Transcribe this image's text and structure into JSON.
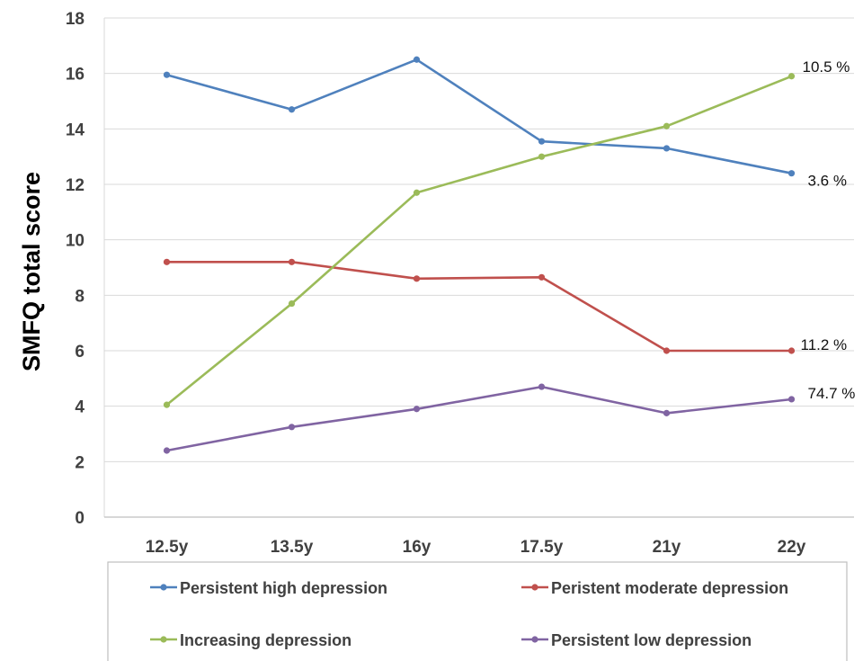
{
  "chart_data": {
    "type": "line",
    "title": "",
    "xlabel": "",
    "ylabel": "SMFQ total score",
    "categories": [
      "12.5y",
      "13.5y",
      "16y",
      "17.5y",
      "21y",
      "22y"
    ],
    "ylim": [
      0,
      18
    ],
    "yticks": [
      0,
      2,
      4,
      6,
      8,
      10,
      12,
      14,
      16,
      18
    ],
    "grid": "horizontal",
    "legend_position": "bottom",
    "series": [
      {
        "name": "Persistent high depression",
        "color": "#4f81bd",
        "values": [
          15.95,
          14.7,
          16.5,
          13.55,
          13.3,
          12.4
        ],
        "end_label": "3.6 %"
      },
      {
        "name": "Peristent moderate depression",
        "color": "#c0504d",
        "values": [
          9.2,
          9.2,
          8.6,
          8.65,
          6.0,
          6.0
        ],
        "end_label": "11.2 %"
      },
      {
        "name": "Increasing depression",
        "color": "#9bbb59",
        "values": [
          4.05,
          7.7,
          11.7,
          13.0,
          14.1,
          15.9
        ],
        "end_label": "10.5 %"
      },
      {
        "name": "Persistent low depression",
        "color": "#8064a2",
        "values": [
          2.4,
          3.25,
          3.9,
          4.7,
          3.75,
          4.25
        ],
        "end_label": "74.7 %"
      }
    ]
  }
}
